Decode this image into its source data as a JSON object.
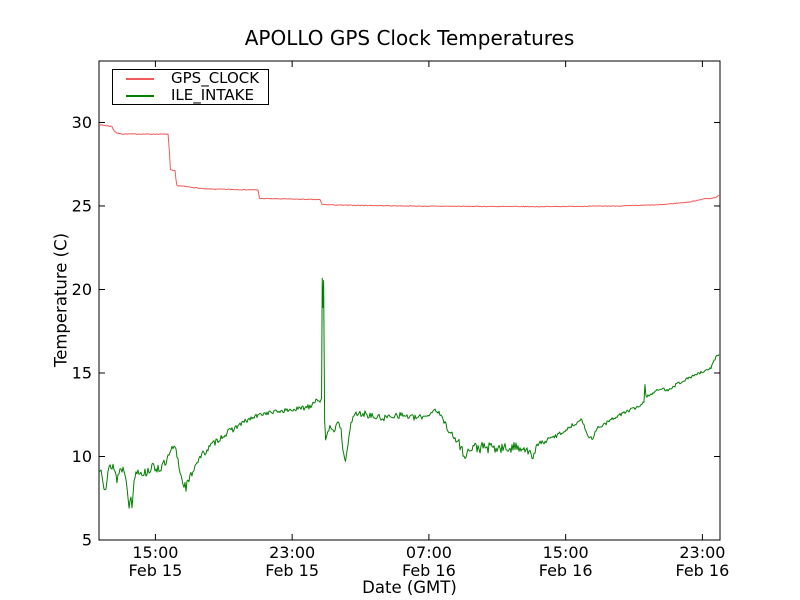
{
  "chart_data": {
    "type": "line",
    "title": "APOLLO GPS Clock Temperatures",
    "xlabel": "Date (GMT)",
    "ylabel": "Temperature (C)",
    "grid": false,
    "legend_position": "upper left",
    "x_unit": "hours since Feb 15 00:00 GMT",
    "xlim": [
      11.7,
      48.03
    ],
    "ylim": [
      5,
      33.68
    ],
    "y_ticks": [
      5,
      10,
      15,
      20,
      25,
      30
    ],
    "x_ticks": [
      {
        "t": 15,
        "time": "15:00",
        "date": "Feb 15"
      },
      {
        "t": 23,
        "time": "23:00",
        "date": "Feb 15"
      },
      {
        "t": 31,
        "time": "07:00",
        "date": "Feb 16"
      },
      {
        "t": 39,
        "time": "15:00",
        "date": "Feb 16"
      },
      {
        "t": 47,
        "time": "23:00",
        "date": "Feb 16"
      }
    ],
    "series": [
      {
        "name": "GPS_CLOCK",
        "color": "#f25a5a",
        "width": 1,
        "seed": 7,
        "points": [
          [
            11.7,
            29.85,
            0.03
          ],
          [
            12.05,
            29.82,
            0.03
          ],
          [
            12.46,
            29.76,
            0.03
          ],
          [
            12.58,
            29.5,
            0.02
          ],
          [
            12.75,
            29.36,
            0.02
          ],
          [
            13.1,
            29.31,
            0.02
          ],
          [
            15.74,
            29.3,
            0.02
          ],
          [
            15.82,
            28.2,
            0.02
          ],
          [
            15.88,
            27.15,
            0.02
          ],
          [
            16.15,
            27.1,
            0.02
          ],
          [
            16.2,
            26.6,
            0.02
          ],
          [
            16.26,
            26.22,
            0.02
          ],
          [
            16.73,
            26.17,
            0.02
          ],
          [
            17.9,
            26.02,
            0.02
          ],
          [
            21.0,
            25.96,
            0.02
          ],
          [
            21.09,
            25.45,
            0.02
          ],
          [
            24.63,
            25.38,
            0.02
          ],
          [
            24.75,
            25.09,
            0.02
          ],
          [
            25.8,
            25.05,
            0.02
          ],
          [
            30.48,
            24.99,
            0.02
          ],
          [
            37.5,
            24.96,
            0.02
          ],
          [
            42.18,
            25.0,
            0.02
          ],
          [
            44.52,
            25.07,
            0.02
          ],
          [
            46.27,
            25.24,
            0.02
          ],
          [
            47.03,
            25.42,
            0.02
          ],
          [
            47.56,
            25.46,
            0.02
          ],
          [
            47.79,
            25.52,
            0.02
          ],
          [
            47.97,
            25.65,
            0.02
          ]
        ]
      },
      {
        "name": "ILE_INTAKE",
        "color": "#007f00",
        "width": 1,
        "seed": 13,
        "points": [
          [
            11.7,
            9.0,
            0.35
          ],
          [
            11.82,
            9.45,
            0.3
          ],
          [
            11.99,
            8.35,
            0.3
          ],
          [
            12.11,
            8.15,
            0.3
          ],
          [
            12.29,
            9.3,
            0.3
          ],
          [
            12.52,
            9.5,
            0.3
          ],
          [
            12.75,
            8.65,
            0.3
          ],
          [
            12.99,
            9.35,
            0.3
          ],
          [
            13.22,
            9.1,
            0.25
          ],
          [
            13.34,
            8.25,
            0.15
          ],
          [
            13.46,
            6.95,
            0.1
          ],
          [
            13.57,
            7.6,
            0.1
          ],
          [
            13.63,
            6.9,
            0.08
          ],
          [
            13.75,
            8.6,
            0.15
          ],
          [
            13.92,
            9.2,
            0.25
          ],
          [
            14.39,
            9.0,
            0.3
          ],
          [
            14.8,
            9.35,
            0.25
          ],
          [
            15.27,
            9.3,
            0.3
          ],
          [
            15.62,
            9.6,
            0.3
          ],
          [
            15.97,
            10.4,
            0.25
          ],
          [
            16.15,
            10.55,
            0.2
          ],
          [
            16.32,
            9.8,
            0.25
          ],
          [
            16.5,
            8.8,
            0.3
          ],
          [
            16.79,
            8.15,
            0.3
          ],
          [
            17.02,
            8.7,
            0.25
          ],
          [
            17.37,
            9.6,
            0.2
          ],
          [
            17.78,
            10.15,
            0.2
          ],
          [
            18.31,
            10.7,
            0.2
          ],
          [
            18.9,
            11.2,
            0.18
          ],
          [
            19.48,
            11.6,
            0.18
          ],
          [
            20.07,
            12.0,
            0.15
          ],
          [
            20.65,
            12.3,
            0.15
          ],
          [
            21.24,
            12.55,
            0.12
          ],
          [
            21.82,
            12.65,
            0.12
          ],
          [
            22.58,
            12.75,
            0.12
          ],
          [
            23.46,
            12.85,
            0.15
          ],
          [
            24.04,
            13.05,
            0.2
          ],
          [
            24.45,
            13.45,
            0.15
          ],
          [
            24.63,
            13.3,
            0.12
          ],
          [
            24.72,
            13.55,
            0.08
          ],
          [
            24.76,
            20.7,
            0.05
          ],
          [
            24.8,
            18.9,
            0.05
          ],
          [
            24.84,
            20.5,
            0.05
          ],
          [
            24.9,
            12.1,
            0.1
          ],
          [
            24.96,
            10.9,
            0.1
          ],
          [
            25.21,
            11.9,
            0.15
          ],
          [
            25.45,
            11.55,
            0.15
          ],
          [
            25.68,
            12.0,
            0.12
          ],
          [
            25.86,
            11.7,
            0.1
          ],
          [
            25.97,
            10.3,
            0.08
          ],
          [
            26.12,
            9.65,
            0.08
          ],
          [
            26.27,
            10.8,
            0.1
          ],
          [
            26.44,
            12.0,
            0.1
          ],
          [
            26.68,
            12.55,
            0.2
          ],
          [
            27.26,
            12.55,
            0.2
          ],
          [
            27.85,
            12.35,
            0.2
          ],
          [
            28.43,
            12.3,
            0.2
          ],
          [
            29.02,
            12.5,
            0.2
          ],
          [
            29.6,
            12.45,
            0.2
          ],
          [
            30.19,
            12.3,
            0.18
          ],
          [
            30.71,
            12.4,
            0.15
          ],
          [
            31.07,
            12.55,
            0.15
          ],
          [
            31.36,
            12.85,
            0.12
          ],
          [
            31.65,
            12.5,
            0.15
          ],
          [
            32.06,
            11.8,
            0.2
          ],
          [
            32.41,
            11.15,
            0.3
          ],
          [
            32.82,
            10.75,
            0.35
          ],
          [
            33.0,
            10.1,
            0.3
          ],
          [
            33.7,
            10.55,
            0.35
          ],
          [
            34.58,
            10.5,
            0.35
          ],
          [
            35.45,
            10.45,
            0.35
          ],
          [
            36.33,
            10.6,
            0.3
          ],
          [
            36.8,
            10.35,
            0.25
          ],
          [
            37.09,
            9.9,
            0.15
          ],
          [
            37.33,
            10.7,
            0.15
          ],
          [
            38.09,
            11.05,
            0.15
          ],
          [
            38.96,
            11.55,
            0.12
          ],
          [
            39.5,
            11.95,
            0.12
          ],
          [
            39.9,
            12.2,
            0.1
          ],
          [
            40.25,
            11.45,
            0.12
          ],
          [
            40.43,
            11.05,
            0.12
          ],
          [
            40.6,
            11.15,
            0.12
          ],
          [
            40.84,
            11.7,
            0.1
          ],
          [
            41.31,
            11.95,
            0.1
          ],
          [
            41.89,
            12.35,
            0.1
          ],
          [
            42.47,
            12.65,
            0.1
          ],
          [
            43.06,
            12.9,
            0.1
          ],
          [
            43.41,
            13.1,
            0.08
          ],
          [
            43.58,
            13.25,
            0.06
          ],
          [
            43.64,
            14.35,
            0.06
          ],
          [
            43.7,
            13.6,
            0.08
          ],
          [
            43.93,
            13.7,
            0.1
          ],
          [
            44.28,
            13.9,
            0.1
          ],
          [
            44.63,
            14.05,
            0.1
          ],
          [
            44.99,
            14.0,
            0.1
          ],
          [
            45.45,
            14.3,
            0.1
          ],
          [
            45.92,
            14.55,
            0.08
          ],
          [
            46.39,
            14.8,
            0.08
          ],
          [
            46.74,
            14.95,
            0.1
          ],
          [
            47.03,
            15.05,
            0.1
          ],
          [
            47.27,
            15.15,
            0.08
          ],
          [
            47.5,
            15.3,
            0.06
          ],
          [
            47.68,
            15.75,
            0.08
          ],
          [
            47.85,
            16.05,
            0.06
          ],
          [
            47.97,
            16.1,
            0.05
          ]
        ]
      }
    ]
  }
}
